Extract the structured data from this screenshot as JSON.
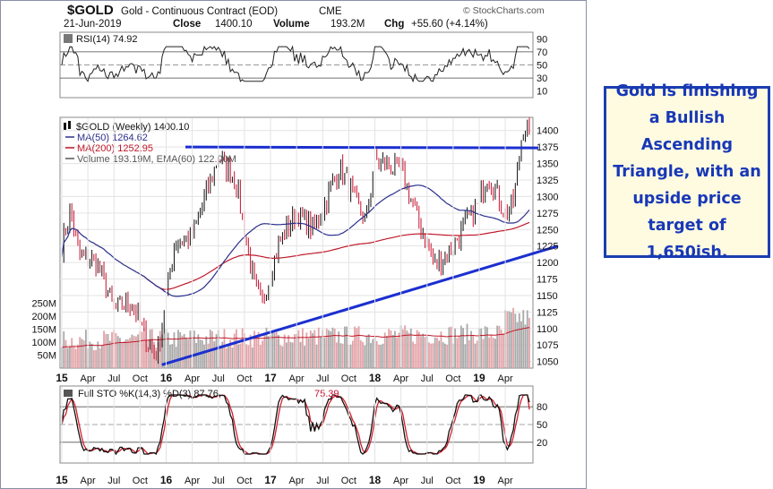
{
  "header": {
    "symbol": "$GOLD",
    "name": "Gold - Continuous Contract (EOD)",
    "exchange": "CME",
    "watermark": "© StockCharts.com",
    "date": "21-Jun-2019",
    "close_label": "Close",
    "close_value": "1400.10",
    "volume_label": "Volume",
    "volume_value": "193.2M",
    "chg_label": "Chg",
    "chg_value": "+55.60 (+4.14%)"
  },
  "rsi": {
    "label": "RSI(14) 74.92",
    "ticks": [
      "90",
      "70",
      "50",
      "30",
      "10"
    ]
  },
  "price": {
    "label": "$GOLD (Weekly) 1400.10",
    "legend": [
      {
        "text": "MA(50) 1264.62",
        "color": "#2b2f8c"
      },
      {
        "text": "MA(200) 1252.95",
        "color": "#c0182a"
      },
      {
        "text": "Volume 193.19M, EMA(60) 122.00M",
        "color": "#555555"
      }
    ],
    "y_ticks": [
      "1400",
      "1375",
      "1350",
      "1325",
      "1300",
      "1275",
      "1250",
      "1225",
      "1200",
      "1175",
      "1150",
      "1125",
      "1100",
      "1075",
      "1050"
    ],
    "volume_ticks": [
      "250M",
      "200M",
      "150M",
      "100M",
      "50M"
    ]
  },
  "sto": {
    "label_main": "Full STO %K(14,3) %D(3) 87.76,",
    "label_d": "75.39",
    "ticks": [
      "80",
      "50",
      "20"
    ]
  },
  "x_axis": {
    "labels": [
      "15",
      "Apr",
      "Jul",
      "Oct",
      "16",
      "Apr",
      "Jul",
      "Oct",
      "17",
      "Apr",
      "Jul",
      "Oct",
      "18",
      "Apr",
      "Jul",
      "Oct",
      "19",
      "Apr"
    ]
  },
  "callout": {
    "text": "Gold is finishing a Bullish Ascending Triangle, with an upside price target of 1,650ish."
  },
  "chart_data": {
    "type": "line",
    "title": "$GOLD Gold - Continuous Contract (EOD) CME",
    "ylim": [
      1040,
      1420
    ],
    "price_anchors": {
      "x": [
        "2015-01",
        "2015-02",
        "2015-03",
        "2015-05",
        "2015-07",
        "2015-09",
        "2015-11",
        "2015-12",
        "2016-02",
        "2016-04",
        "2016-06",
        "2016-07",
        "2016-09",
        "2016-11",
        "2016-12",
        "2017-02",
        "2017-04",
        "2017-06",
        "2017-09",
        "2017-12",
        "2018-01",
        "2018-04",
        "2018-06",
        "2018-08",
        "2018-10",
        "2019-01",
        "2019-02",
        "2019-04",
        "2019-05",
        "2019-06"
      ],
      "close": [
        1225,
        1280,
        1210,
        1200,
        1130,
        1140,
        1075,
        1060,
        1230,
        1240,
        1320,
        1360,
        1325,
        1175,
        1135,
        1230,
        1275,
        1250,
        1345,
        1260,
        1355,
        1340,
        1265,
        1195,
        1225,
        1290,
        1335,
        1275,
        1290,
        1400
      ]
    },
    "ma50": {
      "name": "MA(50)",
      "last": 1264.62
    },
    "ma200": {
      "name": "MA(200)",
      "last": 1252.95
    },
    "volume_ema60_last": 122.0,
    "rsi_last": 74.92,
    "sto_k_last": 87.76,
    "sto_d_last": 75.39,
    "resistance_level": 1375,
    "support_line": {
      "x": [
        "2015-12",
        "2019-06"
      ],
      "y": [
        1045,
        1225
      ]
    }
  },
  "colors": {
    "price_up": "#111111",
    "price_down": "#c8102e",
    "ma50": "#2b2f8c",
    "ma200": "#c0182a",
    "trendline": "#1b2fd0",
    "volume": "#b3b3b3",
    "callout_text": "#1838b8",
    "callout_border": "#1b3fb0",
    "callout_bg": "#fffbe0"
  }
}
